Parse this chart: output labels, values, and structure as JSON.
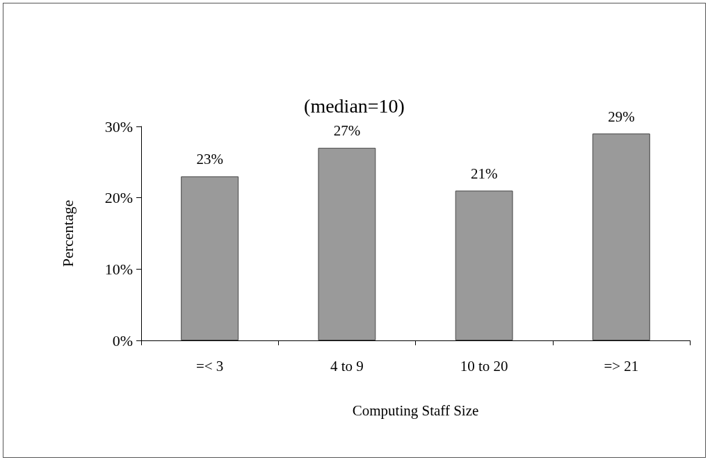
{
  "chart_data": {
    "type": "bar",
    "title": "(median=10)",
    "xlabel": "Computing Staff Size",
    "ylabel": "Percentage",
    "categories": [
      "=< 3",
      "4 to 9",
      "10 to 20",
      "=> 21"
    ],
    "values": [
      23,
      27,
      21,
      29
    ],
    "value_labels": [
      "23%",
      "27%",
      "21%",
      "29%"
    ],
    "color": "#9a9a9a",
    "ylim": [
      0,
      30
    ],
    "yticks": [
      {
        "value": 0,
        "label": "0%"
      },
      {
        "value": 10,
        "label": "10%"
      },
      {
        "value": 20,
        "label": "20%"
      },
      {
        "value": 30,
        "label": "30%"
      }
    ],
    "grid": false
  }
}
